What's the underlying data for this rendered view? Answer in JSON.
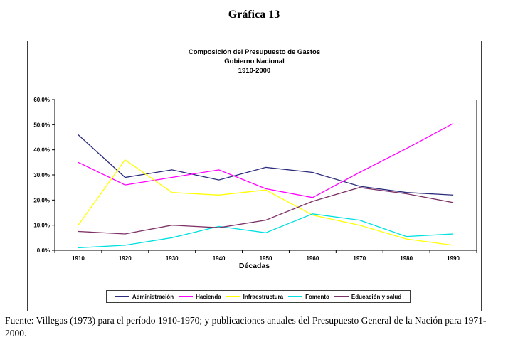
{
  "page": {
    "title": "Gráfica 13",
    "source_note": "Fuente: Villegas (1973) para el período 1910-1970; y publicaciones anuales del Presupuesto General de la Nación para 1971-2000."
  },
  "chart_data": {
    "type": "line",
    "title": "Composición del Presupuesto de Gastos",
    "subtitle": "Gobierno Nacional",
    "subtitle2": "1910-2000",
    "xlabel": "Décadas",
    "categories": [
      "1910",
      "1920",
      "1930",
      "1940",
      "1950",
      "1960",
      "1970",
      "1980",
      "1990"
    ],
    "y_tick_labels": [
      "0.0%",
      "10.0%",
      "20.0%",
      "30.0%",
      "40.0%",
      "50.0%",
      "60.0%"
    ],
    "ylim": [
      0,
      60
    ],
    "grid": false,
    "legend_position": "bottom",
    "axis_color": "#000000",
    "series": [
      {
        "name": "Administración",
        "color": "#2b2b7d",
        "values": [
          46,
          29,
          32,
          28,
          33,
          31,
          25.5,
          23,
          22
        ]
      },
      {
        "name": "Hacienda",
        "color": "#ff00ff",
        "values": [
          35,
          26,
          29,
          32,
          24.5,
          21,
          31,
          40.5,
          50.5
        ]
      },
      {
        "name": "Infraestructura",
        "color": "#ffff00",
        "values": [
          10,
          36,
          23,
          22,
          24,
          14,
          10,
          4.5,
          2
        ]
      },
      {
        "name": "Fomento",
        "color": "#00e0e0",
        "values": [
          1,
          2,
          5,
          9.5,
          7,
          14.5,
          12,
          5.5,
          6.5
        ]
      },
      {
        "name": "Educación y salud",
        "color": "#7c3166",
        "values": [
          7.5,
          6.5,
          10,
          9,
          12,
          19.5,
          25,
          22.5,
          19
        ]
      }
    ]
  }
}
